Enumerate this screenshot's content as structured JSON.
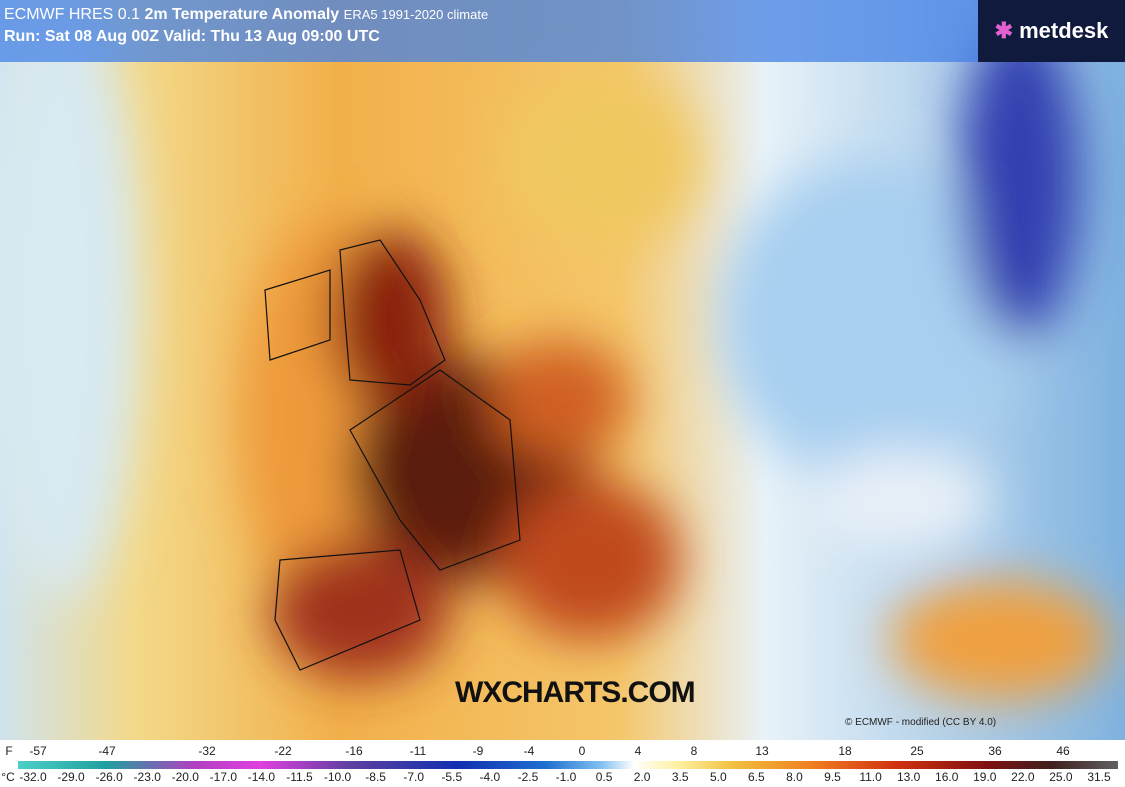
{
  "header": {
    "model": "ECMWF HRES 0.1",
    "title": "2m Temperature Anomaly",
    "climate": "ERA5 1991-2020 climate",
    "run": "Run: Sat 08 Aug 00Z Valid: Thu 13 Aug 09:00 UTC"
  },
  "logo": "metdesk",
  "watermark": "WXCHARTS.COM",
  "credit": "© ECMWF - modified (CC BY 4.0)",
  "colorbar": {
    "f_unit": "F",
    "f_labels": [
      -57,
      -47,
      -32,
      -22,
      -16,
      -11,
      -9,
      -4,
      0,
      4,
      8,
      13,
      18,
      25,
      36,
      46
    ],
    "c_unit": "°C",
    "c_labels": [
      "-32.0",
      "-29.0",
      "-26.0",
      "-23.0",
      "-20.0",
      "-17.0",
      "-14.0",
      "-11.5",
      "-10.0",
      "-8.5",
      "-7.0",
      "-5.5",
      "-4.0",
      "-2.5",
      "-1.0",
      "0.5",
      "2.0",
      "3.5",
      "5.0",
      "6.5",
      "8.0",
      "9.5",
      "11.0",
      "13.0",
      "16.0",
      "19.0",
      "22.0",
      "25.0",
      "31.5"
    ]
  }
}
